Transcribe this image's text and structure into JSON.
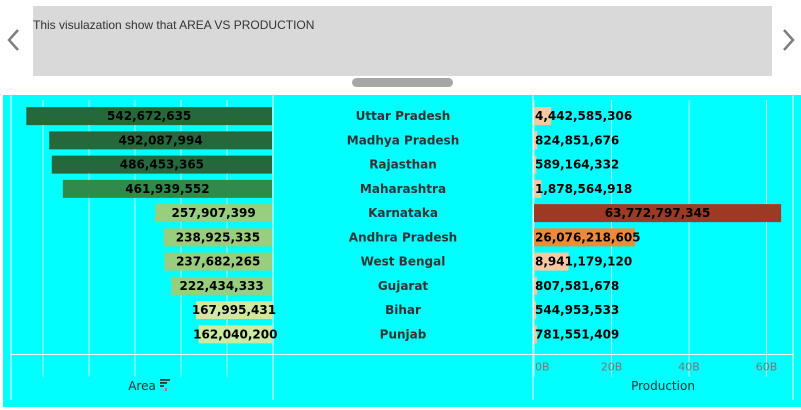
{
  "caption": "This visulazation show that AREA VS PRODUCTION",
  "colors": {
    "background": "#00ffff",
    "caption_bg": "#d9d9d9",
    "area_scale": [
      "#25683b",
      "#2e8b4c",
      "#5fae62",
      "#97cf7e",
      "#cdeaa0"
    ],
    "production_scale": [
      "#f6c9a0",
      "#f08a3a",
      "#9e3a24"
    ]
  },
  "chart_data": {
    "type": "bar",
    "categories": [
      "Uttar Pradesh",
      "Madhya Pradesh",
      "Rajasthan",
      "Maharashtra",
      "Karnataka",
      "Andhra Pradesh",
      "West Bengal",
      "Gujarat",
      "Bihar",
      "Punjab"
    ],
    "sorted_by": "Area (descending)",
    "series": [
      {
        "name": "Area",
        "values": [
          542672635,
          492087994,
          486453365,
          461939552,
          257907399,
          238925335,
          237682265,
          222434333,
          167995431,
          162040200
        ],
        "labels": [
          "542,672,635",
          "492,087,994",
          "486,453,365",
          "461,939,552",
          "257,907,399",
          "238,925,335",
          "237,682,265",
          "222,434,333",
          "167,995,431",
          "162,040,200"
        ],
        "axis_title": "Area",
        "xlim": [
          0,
          550000000
        ]
      },
      {
        "name": "Production",
        "values": [
          4442585306,
          824851676,
          589164332,
          1878564918,
          63772797345,
          26076218605,
          8941179120,
          807581678,
          544953533,
          781551409
        ],
        "labels": [
          "4,442,585,306",
          "824,851,676",
          "589,164,332",
          "1,878,564,918",
          "63,772,797,345",
          "26,076,218,605",
          "8,941,179,120",
          "807,581,678",
          "544,953,533",
          "781,551,409"
        ],
        "axis_title": "Production",
        "xlim": [
          0,
          64000000000
        ],
        "ticks": [
          0,
          20000000000,
          40000000000,
          60000000000
        ],
        "tick_labels": [
          "0B",
          "20B",
          "40B",
          "60B"
        ]
      }
    ],
    "grid": true
  }
}
